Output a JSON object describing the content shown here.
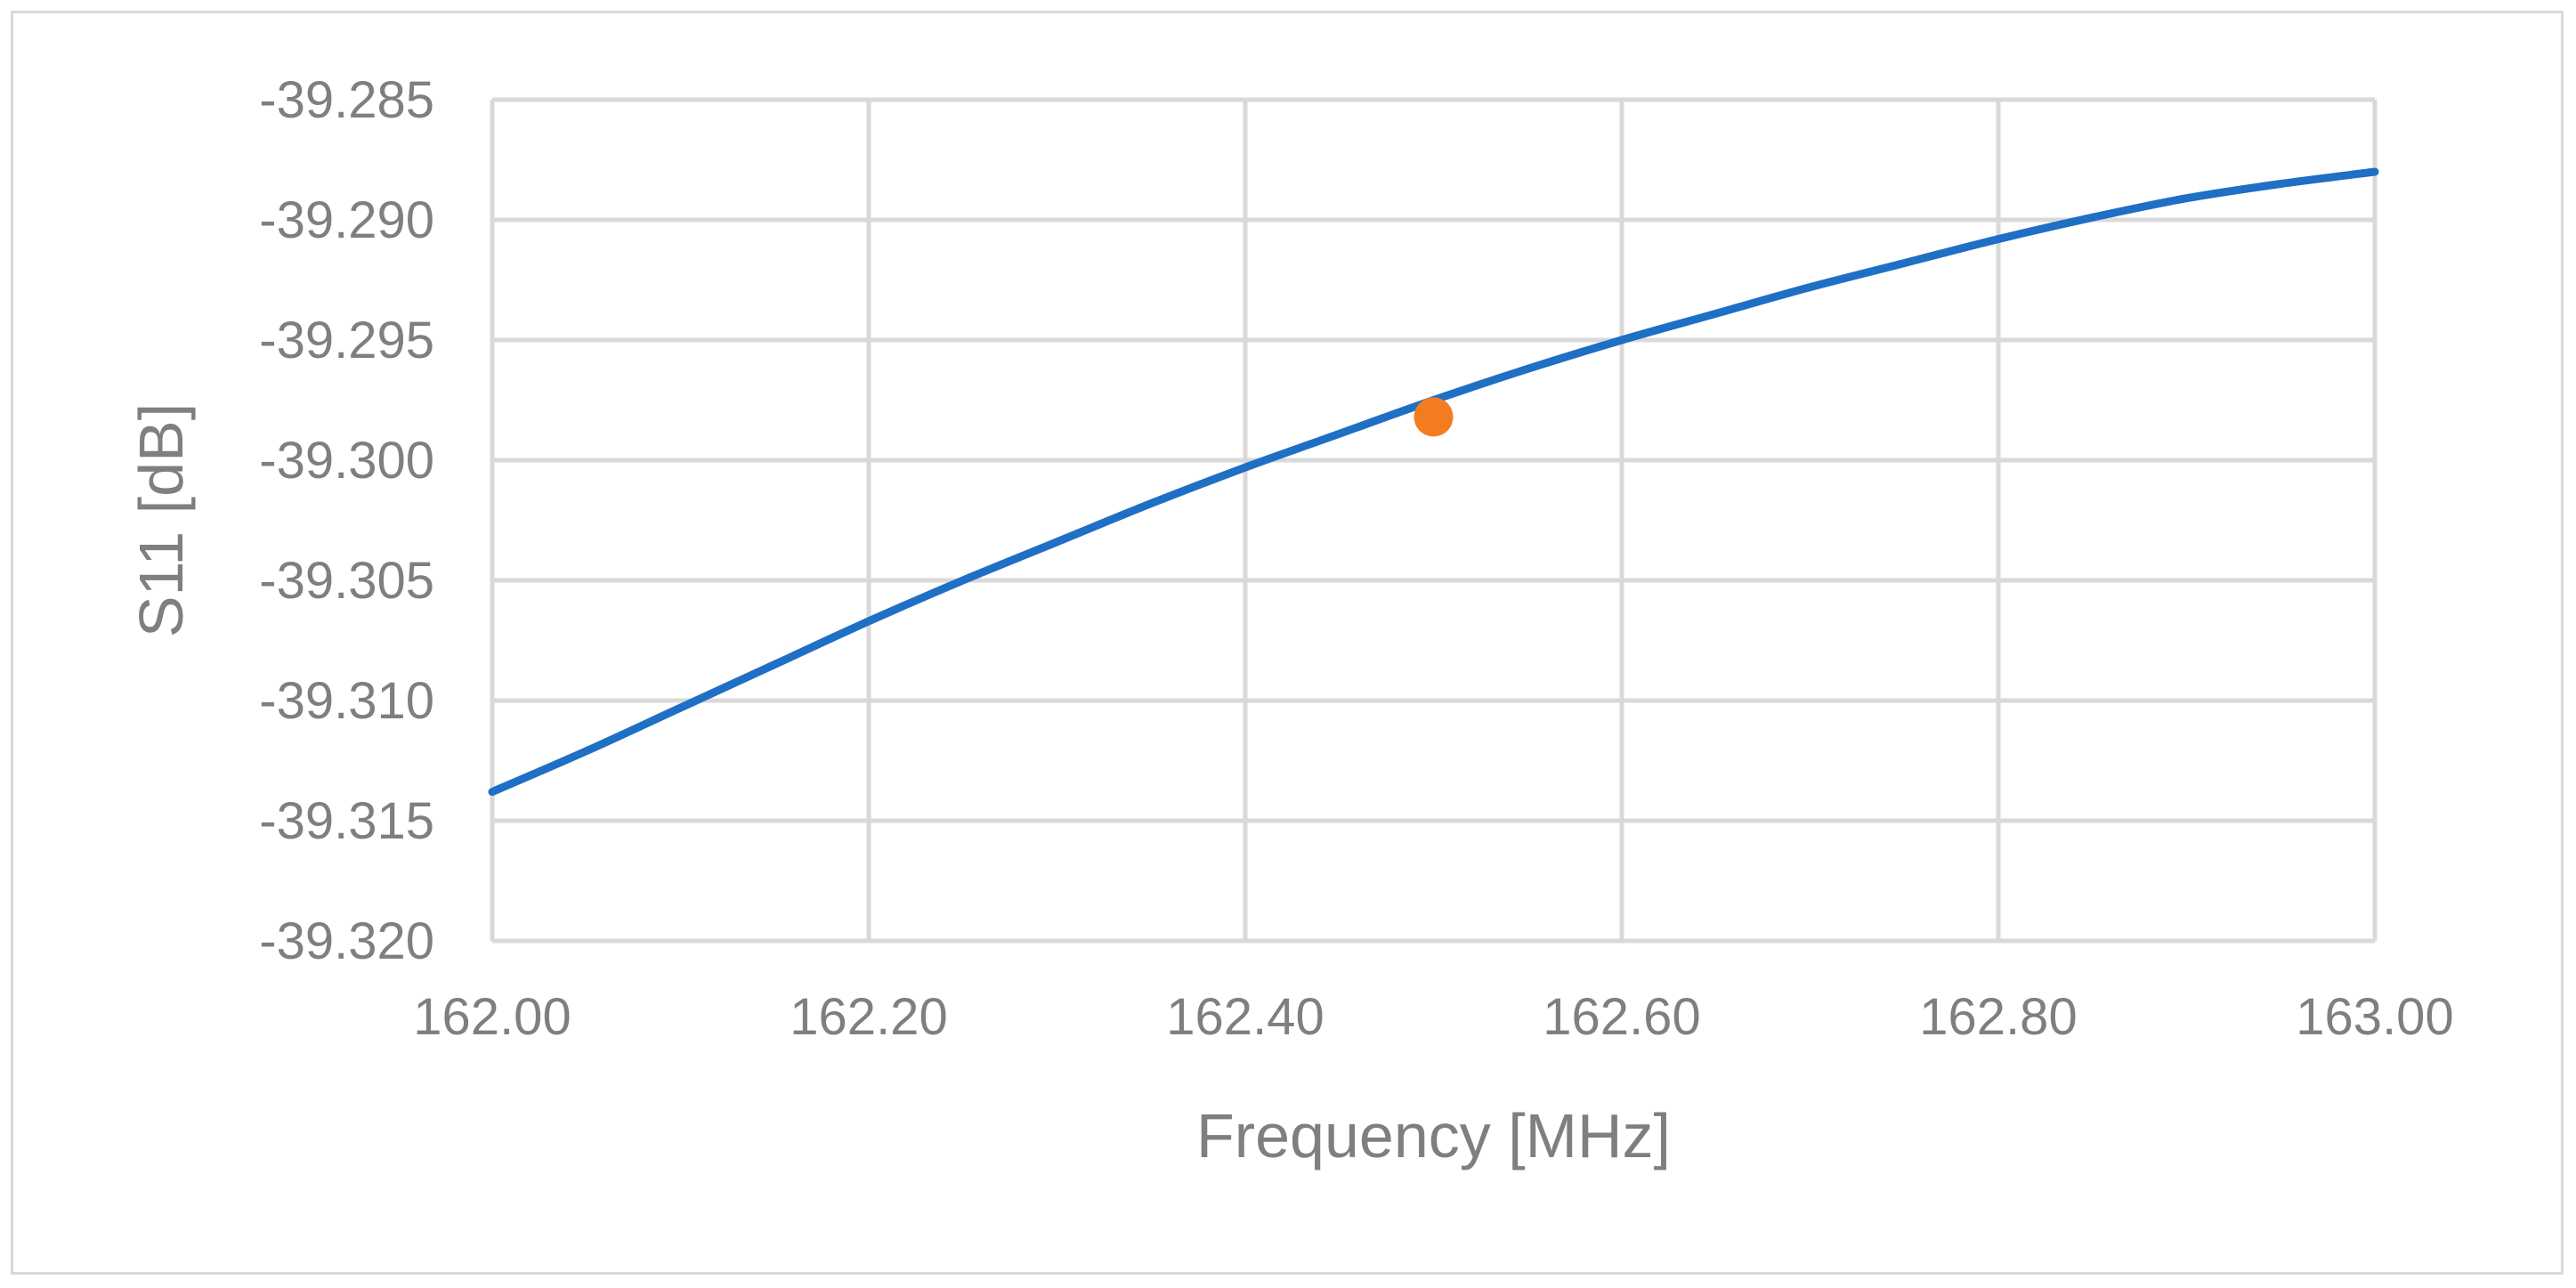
{
  "chart_data": {
    "type": "line",
    "title": "",
    "xlabel": "Frequency [MHz]",
    "ylabel": "S11 [dB]",
    "xlim": [
      162.0,
      163.0
    ],
    "ylim": [
      -39.32,
      -39.285
    ],
    "x_ticks": [
      162.0,
      162.2,
      162.4,
      162.6,
      162.8,
      163.0
    ],
    "x_tick_labels": [
      "162.00",
      "162.20",
      "162.40",
      "162.60",
      "162.80",
      "163.00"
    ],
    "y_ticks": [
      -39.285,
      -39.29,
      -39.295,
      -39.3,
      -39.305,
      -39.31,
      -39.315,
      -39.32
    ],
    "y_tick_labels": [
      "-39.285",
      "-39.290",
      "-39.295",
      "-39.300",
      "-39.305",
      "-39.310",
      "-39.315",
      "-39.320"
    ],
    "grid": true,
    "legend": "none",
    "series": [
      {
        "color": "#1f6fc5",
        "x": [
          162.0,
          162.05,
          162.1,
          162.15,
          162.2,
          162.25,
          162.3,
          162.35,
          162.4,
          162.45,
          162.5,
          162.55,
          162.6,
          162.65,
          162.7,
          162.75,
          162.8,
          162.85,
          162.9,
          162.95,
          163.0
        ],
        "y": [
          -39.3138,
          -39.3121,
          -39.3103,
          -39.3085,
          -39.3067,
          -39.305,
          -39.3034,
          -39.3018,
          -39.3003,
          -39.2989,
          -39.2975,
          -39.2962,
          -39.295,
          -39.2939,
          -39.2928,
          -39.2918,
          -39.2908,
          -39.2899,
          -39.2891,
          -39.2885,
          -39.288
        ]
      }
    ],
    "marker": {
      "color": "#f47c20",
      "x": 162.5,
      "y": -39.2982
    }
  }
}
